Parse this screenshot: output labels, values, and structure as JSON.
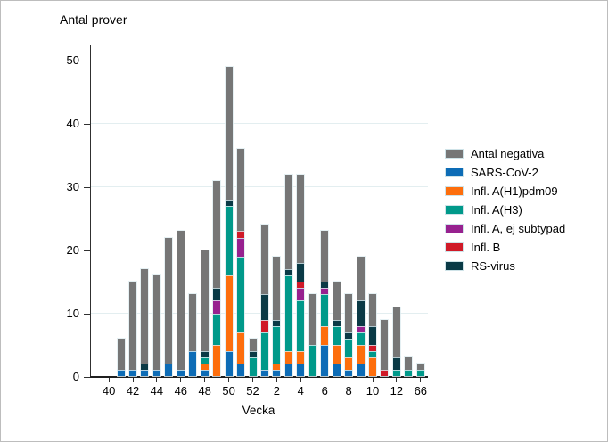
{
  "chart_data": {
    "type": "bar",
    "stacked": true,
    "title": "Antal prover",
    "xlabel": "Vecka",
    "ylabel": "Antal prover",
    "ylim": [
      0,
      50
    ],
    "yticks": [
      0,
      10,
      20,
      30,
      40,
      50
    ],
    "x_tick_labels": [
      "40",
      "42",
      "44",
      "46",
      "48",
      "50",
      "52",
      "2",
      "4",
      "6",
      "8",
      "10",
      "12",
      "66"
    ],
    "categories": [
      "41",
      "42",
      "43",
      "44",
      "45",
      "46",
      "47",
      "48",
      "49",
      "50",
      "51",
      "52",
      "1",
      "2",
      "3",
      "4",
      "5",
      "6",
      "7",
      "8",
      "9",
      "10",
      "11",
      "12",
      "13",
      "66"
    ],
    "series": [
      {
        "name": "SARS-CoV-2",
        "color": "#0d6cb6",
        "values": [
          1,
          1,
          1,
          1,
          2,
          1,
          4,
          1,
          0,
          4,
          2,
          0,
          1,
          1,
          2,
          2,
          0,
          5,
          2,
          1,
          2,
          0,
          0,
          0,
          0,
          0
        ]
      },
      {
        "name": "Infl. A(H1)pdm09",
        "color": "#fd6e0d",
        "values": [
          0,
          0,
          0,
          0,
          0,
          0,
          0,
          1,
          5,
          12,
          5,
          0,
          0,
          1,
          2,
          2,
          0,
          3,
          3,
          2,
          3,
          3,
          0,
          0,
          0,
          0
        ]
      },
      {
        "name": "Infl. A(H3)",
        "color": "#00998a",
        "values": [
          0,
          0,
          0,
          0,
          0,
          0,
          0,
          1,
          5,
          11,
          12,
          3,
          6,
          6,
          12,
          8,
          5,
          5,
          3,
          3,
          2,
          1,
          0,
          1,
          1,
          1
        ]
      },
      {
        "name": "Infl. A, ej subtypad",
        "color": "#97218f",
        "values": [
          0,
          0,
          0,
          0,
          0,
          0,
          0,
          0,
          2,
          0,
          3,
          0,
          0,
          0,
          0,
          2,
          0,
          1,
          0,
          0,
          1,
          0,
          0,
          0,
          0,
          0
        ]
      },
      {
        "name": "Infl. B",
        "color": "#d01a28",
        "values": [
          0,
          0,
          0,
          0,
          0,
          0,
          0,
          0,
          0,
          0,
          1,
          0,
          2,
          0,
          0,
          1,
          0,
          0,
          0,
          0,
          0,
          1,
          1,
          0,
          0,
          0
        ]
      },
      {
        "name": "RS-virus",
        "color": "#0a3a46",
        "values": [
          0,
          0,
          1,
          0,
          0,
          0,
          0,
          1,
          2,
          1,
          0,
          1,
          4,
          1,
          1,
          3,
          0,
          1,
          1,
          1,
          4,
          3,
          0,
          2,
          0,
          0
        ]
      },
      {
        "name": "Antal negativa",
        "color": "#767676",
        "values": [
          5,
          14,
          15,
          15,
          20,
          22,
          9,
          16,
          17,
          21,
          13,
          2,
          11,
          10,
          15,
          14,
          8,
          8,
          6,
          6,
          7,
          5,
          8,
          8,
          2,
          1
        ]
      }
    ],
    "legend": [
      {
        "label": "Antal negativa",
        "color": "#767676"
      },
      {
        "label": "SARS-CoV-2",
        "color": "#0d6cb6"
      },
      {
        "label": "Infl. A(H1)pdm09",
        "color": "#fd6e0d"
      },
      {
        "label": "Infl. A(H3)",
        "color": "#00998a"
      },
      {
        "label": "Infl. A, ej subtypad",
        "color": "#97218f"
      },
      {
        "label": "Infl. B",
        "color": "#d01a28"
      },
      {
        "label": "RS-virus",
        "color": "#0a3a46"
      }
    ],
    "legend_position": "right"
  }
}
